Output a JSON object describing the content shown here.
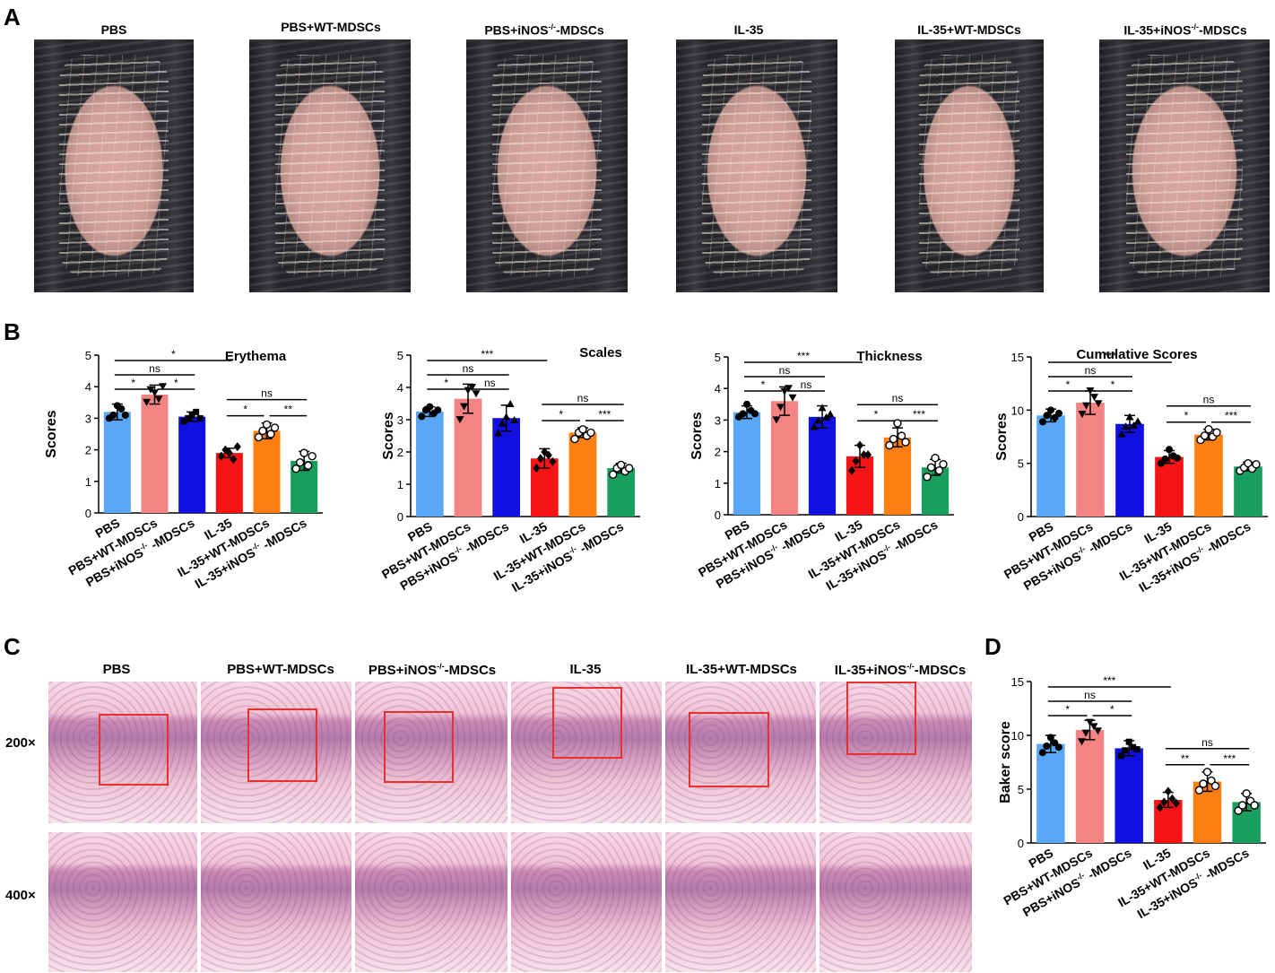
{
  "panel_letters": {
    "a": "A",
    "b": "B",
    "c": "C",
    "d": "D"
  },
  "groups": [
    "PBS",
    "PBS+WT-MDSCs",
    "PBS+iNOS-/--MDSCs",
    "IL-35",
    "IL-35+WT-MDSCs",
    "IL-35+iNOS-/--MDSCs"
  ],
  "photo_labels": {
    "a": [
      "PBS",
      "PBS+WT-MDSCs",
      "PBS+iNOS",
      "IL-35",
      "IL-35+WT-MDSCs",
      "IL-35+iNOS"
    ],
    "a_suffix": [
      "",
      "",
      "-/-",
      "",
      "",
      "-/-"
    ],
    "a_tail": [
      "",
      "",
      "-MDSCs",
      "",
      "",
      "-MDSCs"
    ],
    "c": [
      "PBS",
      "PBS+WT-MDSCs",
      "PBS+iNOS",
      "IL-35",
      "IL-35+WT-MDSCs",
      "IL-35+iNOS"
    ]
  },
  "magnifications": {
    "low": "200×",
    "high": "400×"
  },
  "bar_colors": [
    "#5aa8f5",
    "#f48383",
    "#1010e0",
    "#f71414",
    "#ff7f10",
    "#189e5e"
  ],
  "tick_labels": {
    "plain": [
      "PBS",
      "PBS+WT-MDSCs",
      "PBS+iNOS",
      "IL-35",
      "IL-35+WT-MDSCs",
      "IL-35+iNOS"
    ],
    "sup": [
      "",
      "",
      "-/-",
      "",
      "",
      "-/-"
    ],
    "tail": [
      "",
      "",
      " -MDSCs",
      "",
      "",
      " -MDSCs"
    ]
  },
  "chart_data": [
    {
      "type": "bar",
      "title": "Erythema",
      "ylabel": "Scores",
      "ylim": [
        0,
        5
      ],
      "yticks": [
        0,
        1,
        2,
        3,
        4,
        5
      ],
      "values": [
        3.2,
        3.75,
        3.05,
        1.9,
        2.6,
        1.65
      ],
      "errors": [
        0.25,
        0.3,
        0.15,
        0.15,
        0.25,
        0.3
      ],
      "points": [
        [
          3.0,
          3.1,
          3.4,
          3.3,
          3.1
        ],
        [
          3.5,
          3.9,
          3.8,
          3.6,
          4.0
        ],
        [
          2.9,
          3.0,
          3.1,
          3.2,
          3.0
        ],
        [
          1.8,
          2.0,
          1.9,
          1.7,
          2.1
        ],
        [
          2.4,
          2.6,
          2.8,
          2.5,
          2.7
        ],
        [
          1.4,
          1.6,
          1.9,
          1.5,
          1.8
        ]
      ],
      "markers": [
        "circle",
        "tri-down",
        "square",
        "diamond",
        "circle-open",
        "circle-open"
      ],
      "significance": [
        {
          "from": 0,
          "to": 3,
          "label": "*"
        },
        {
          "from": 0,
          "to": 2,
          "label": "ns"
        },
        {
          "from": 0,
          "to": 1,
          "label": "*"
        },
        {
          "from": 1,
          "to": 2,
          "label": "*"
        },
        {
          "from": 3,
          "to": 5,
          "label": "ns"
        },
        {
          "from": 3,
          "to": 4,
          "label": "*"
        },
        {
          "from": 4,
          "to": 5,
          "label": "**"
        }
      ]
    },
    {
      "type": "bar",
      "title": "Scales",
      "ylabel": "Scores",
      "ylim": [
        0,
        5
      ],
      "yticks": [
        0,
        1,
        2,
        3,
        4,
        5
      ],
      "values": [
        3.25,
        3.65,
        3.05,
        1.8,
        2.6,
        1.5
      ],
      "errors": [
        0.15,
        0.45,
        0.4,
        0.3,
        0.15,
        0.15
      ],
      "points": [
        [
          3.1,
          3.3,
          3.4,
          3.2,
          3.3
        ],
        [
          3.0,
          3.4,
          3.9,
          4.0,
          3.8
        ],
        [
          2.6,
          2.9,
          3.1,
          3.5,
          3.0
        ],
        [
          1.5,
          1.8,
          2.0,
          1.9,
          1.7
        ],
        [
          2.4,
          2.6,
          2.7,
          2.5,
          2.6
        ],
        [
          1.3,
          1.5,
          1.6,
          1.4,
          1.5
        ]
      ],
      "markers": [
        "circle",
        "tri-down",
        "tri-up",
        "diamond",
        "circle-open",
        "circle-open"
      ],
      "significance": [
        {
          "from": 0,
          "to": 3,
          "label": "***"
        },
        {
          "from": 0,
          "to": 2,
          "label": "ns"
        },
        {
          "from": 0,
          "to": 1,
          "label": "*"
        },
        {
          "from": 1,
          "to": 2,
          "label": "ns"
        },
        {
          "from": 3,
          "to": 5,
          "label": "ns"
        },
        {
          "from": 3,
          "to": 4,
          "label": "*"
        },
        {
          "from": 4,
          "to": 5,
          "label": "***"
        }
      ]
    },
    {
      "type": "bar",
      "title": "Thickness",
      "ylabel": "Scores",
      "ylim": [
        0,
        5
      ],
      "yticks": [
        0,
        1,
        2,
        3,
        4,
        5
      ],
      "values": [
        3.25,
        3.6,
        3.1,
        1.85,
        2.45,
        1.5
      ],
      "errors": [
        0.2,
        0.45,
        0.35,
        0.35,
        0.3,
        0.25
      ],
      "points": [
        [
          3.1,
          3.2,
          3.5,
          3.3,
          3.2
        ],
        [
          3.0,
          3.4,
          3.9,
          4.0,
          3.7
        ],
        [
          2.8,
          3.0,
          3.4,
          3.1,
          3.2
        ],
        [
          1.4,
          1.7,
          2.2,
          1.9,
          1.9
        ],
        [
          2.2,
          2.4,
          2.9,
          2.5,
          2.3
        ],
        [
          1.2,
          1.5,
          1.8,
          1.4,
          1.6
        ]
      ],
      "markers": [
        "circle",
        "tri-down",
        "tri-up",
        "diamond",
        "circle-open",
        "circle-open"
      ],
      "significance": [
        {
          "from": 0,
          "to": 3,
          "label": "***"
        },
        {
          "from": 0,
          "to": 2,
          "label": "ns"
        },
        {
          "from": 0,
          "to": 1,
          "label": "*"
        },
        {
          "from": 1,
          "to": 2,
          "label": "ns"
        },
        {
          "from": 3,
          "to": 5,
          "label": "ns"
        },
        {
          "from": 3,
          "to": 4,
          "label": "*"
        },
        {
          "from": 4,
          "to": 5,
          "label": "***"
        }
      ]
    },
    {
      "type": "bar",
      "title": "Cumulative Scores",
      "ylabel": "Scores",
      "ylim": [
        0,
        15
      ],
      "yticks": [
        0,
        5,
        10,
        15
      ],
      "values": [
        9.5,
        10.7,
        8.7,
        5.6,
        7.7,
        4.7
      ],
      "errors": [
        0.6,
        1.1,
        0.8,
        0.6,
        0.5,
        0.4
      ],
      "points": [
        [
          8.9,
          9.5,
          10.0,
          9.3,
          9.7
        ],
        [
          9.6,
          10.4,
          11.8,
          11.2,
          10.6
        ],
        [
          7.8,
          8.5,
          9.4,
          8.6,
          9.0
        ],
        [
          5.0,
          5.4,
          6.3,
          5.7,
          5.5
        ],
        [
          7.2,
          7.6,
          8.2,
          7.5,
          7.9
        ],
        [
          4.3,
          4.6,
          5.0,
          4.5,
          4.9
        ]
      ],
      "markers": [
        "circle",
        "tri-down",
        "tri-up",
        "circle",
        "circle-open",
        "circle-open"
      ],
      "significance": [
        {
          "from": 0,
          "to": 3,
          "label": "***"
        },
        {
          "from": 0,
          "to": 2,
          "label": "ns"
        },
        {
          "from": 0,
          "to": 1,
          "label": "*"
        },
        {
          "from": 1,
          "to": 2,
          "label": "*"
        },
        {
          "from": 3,
          "to": 5,
          "label": "ns"
        },
        {
          "from": 3,
          "to": 4,
          "label": "*"
        },
        {
          "from": 4,
          "to": 5,
          "label": "***"
        }
      ]
    },
    {
      "type": "bar",
      "title": "",
      "ylabel": "Baker score",
      "ylim": [
        0,
        15
      ],
      "yticks": [
        0,
        5,
        10,
        15
      ],
      "values": [
        9.2,
        10.5,
        8.8,
        4.0,
        5.7,
        3.8
      ],
      "errors": [
        0.8,
        0.9,
        0.7,
        0.7,
        0.9,
        0.8
      ],
      "points": [
        [
          8.4,
          9.0,
          9.8,
          9.3,
          8.9
        ],
        [
          9.4,
          10.2,
          11.2,
          10.8,
          10.4
        ],
        [
          8.1,
          8.6,
          9.4,
          8.9,
          8.7
        ],
        [
          3.3,
          3.8,
          4.8,
          4.1,
          3.7
        ],
        [
          4.9,
          5.5,
          6.6,
          5.8,
          5.3
        ],
        [
          3.0,
          3.5,
          4.6,
          3.9,
          3.5
        ]
      ],
      "markers": [
        "circle",
        "tri-down",
        "square",
        "diamond",
        "circle-open",
        "circle-open"
      ],
      "significance": [
        {
          "from": 0,
          "to": 3,
          "label": "***"
        },
        {
          "from": 0,
          "to": 2,
          "label": "ns"
        },
        {
          "from": 0,
          "to": 1,
          "label": "*"
        },
        {
          "from": 1,
          "to": 2,
          "label": "*"
        },
        {
          "from": 3,
          "to": 5,
          "label": "ns"
        },
        {
          "from": 3,
          "to": 4,
          "label": "**"
        },
        {
          "from": 4,
          "to": 5,
          "label": "***"
        }
      ]
    }
  ]
}
